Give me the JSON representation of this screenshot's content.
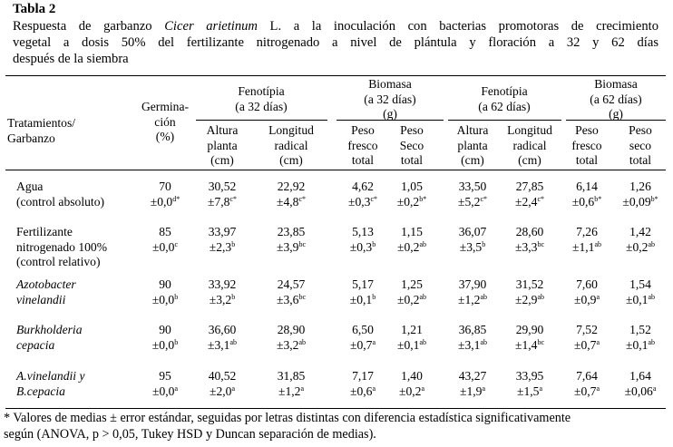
{
  "table_title": "Tabla 2",
  "caption": {
    "part1": "Respuesta de garbanzo ",
    "species": "Cicer arietinum",
    "part2": " L. a la inoculación con bacterias promotoras de crecimiento",
    "line2": "vegetal a dosis 50% del fertilizante nitrogenado a nivel de plántula y floración a 32 y 62 días",
    "line3": "después de la siembra"
  },
  "header": {
    "treatments": [
      "Tratamientos/",
      "Garbanzo"
    ],
    "germination": [
      "Germina-",
      "ción",
      "(%)"
    ],
    "group1": [
      "Fenotípia",
      "(a 32 días)"
    ],
    "group2": [
      "Biomasa",
      "(a 32 días)",
      "(g)"
    ],
    "group3": [
      "Fenotípia",
      "(a 62 días)"
    ],
    "group4": [
      "Biomasa",
      "(a 62 días)",
      "(g)"
    ],
    "subcols": [
      [
        "Altura",
        "planta",
        "(cm)"
      ],
      [
        "Longitud",
        "radical",
        "(cm)"
      ],
      [
        "Peso",
        "fresco",
        "total"
      ],
      [
        "Peso",
        "Seco",
        "total"
      ],
      [
        "Altura",
        "planta",
        "(cm)"
      ],
      [
        "Longitud",
        "radical",
        "(cm)"
      ],
      [
        "Peso",
        "fresco",
        "total"
      ],
      [
        "Peso",
        "seco",
        "total"
      ]
    ]
  },
  "rows": [
    {
      "name": [
        "Agua",
        "(control absoluto)"
      ],
      "italic": false,
      "cells": [
        {
          "mean": "70",
          "err": "±0,0",
          "sup": "d*"
        },
        {
          "mean": "30,52",
          "err": "±7,8",
          "sup": "c*"
        },
        {
          "mean": "22,92",
          "err": "±4,8",
          "sup": "c*"
        },
        {
          "mean": "4,62",
          "err": "±0,3",
          "sup": "c*"
        },
        {
          "mean": "1,05",
          "err": "±0,2",
          "sup": "b*"
        },
        {
          "mean": "33,50",
          "err": "±5,2",
          "sup": "c*"
        },
        {
          "mean": "27,85",
          "err": "±2,4",
          "sup": "c*"
        },
        {
          "mean": "6,14",
          "err": "±0,6",
          "sup": "b*"
        },
        {
          "mean": "1,26",
          "err": "±0,09",
          "sup": "b*"
        }
      ]
    },
    {
      "name": [
        "Fertilizante",
        "nitrogenado 100%",
        "(control relativo)"
      ],
      "italic": false,
      "cells": [
        {
          "mean": "85",
          "err": "±0,0",
          "sup": "c"
        },
        {
          "mean": "33,97",
          "err": "±2,3",
          "sup": "b"
        },
        {
          "mean": "23,85",
          "err": "±3,9",
          "sup": "bc"
        },
        {
          "mean": "5,13",
          "err": "±0,3",
          "sup": "b"
        },
        {
          "mean": "1,15",
          "err": "±0,2",
          "sup": "ab"
        },
        {
          "mean": "36,07",
          "err": "±3,5",
          "sup": "b"
        },
        {
          "mean": "28,60",
          "err": "±3,3",
          "sup": "bc"
        },
        {
          "mean": "7,26",
          "err": "±1,1",
          "sup": "ab"
        },
        {
          "mean": "1,42",
          "err": "±0,2",
          "sup": "ab"
        }
      ]
    },
    {
      "name": [
        "Azotobacter",
        "vinelandii"
      ],
      "italic": true,
      "cells": [
        {
          "mean": "90",
          "err": "±0,0",
          "sup": "b"
        },
        {
          "mean": "33,92",
          "err": "±3,2",
          "sup": "b"
        },
        {
          "mean": "24,57",
          "err": "±3,6",
          "sup": "bc"
        },
        {
          "mean": "5,17",
          "err": "±0,1",
          "sup": "b"
        },
        {
          "mean": "1,25",
          "err": "±0,2",
          "sup": "ab"
        },
        {
          "mean": "37,90",
          "err": "±1,2",
          "sup": "ab"
        },
        {
          "mean": "31,52",
          "err": "±2,9",
          "sup": "ab"
        },
        {
          "mean": "7,60",
          "err": "±0,9",
          "sup": "a"
        },
        {
          "mean": "1,54",
          "err": "±0,1",
          "sup": "ab"
        }
      ]
    },
    {
      "name": [
        "Burkholderia",
        "cepacia"
      ],
      "italic": true,
      "cells": [
        {
          "mean": "90",
          "err": "±0,0",
          "sup": "b"
        },
        {
          "mean": "36,60",
          "err": "±3,1",
          "sup": "ab"
        },
        {
          "mean": "28,90",
          "err": "±3,2",
          "sup": "ab"
        },
        {
          "mean": "6,50",
          "err": "±0,7",
          "sup": "a"
        },
        {
          "mean": "1,21",
          "err": "±0,1",
          "sup": "ab"
        },
        {
          "mean": "36,85",
          "err": "±3,1",
          "sup": "ab"
        },
        {
          "mean": "29,90",
          "err": "±1,4",
          "sup": "bc"
        },
        {
          "mean": "7,52",
          "err": "±0,7",
          "sup": "a"
        },
        {
          "mean": "1,52",
          "err": "±0,1",
          "sup": "ab"
        }
      ]
    },
    {
      "name": [
        "A.vinelandii  y",
        "B.cepacia"
      ],
      "italic": true,
      "cells": [
        {
          "mean": "95",
          "err": "±0,0",
          "sup": "a"
        },
        {
          "mean": "40,52",
          "err": "±2,0",
          "sup": "a"
        },
        {
          "mean": "31,85",
          "err": "±1,2",
          "sup": "a"
        },
        {
          "mean": "7,17",
          "err": "±0,6",
          "sup": "a"
        },
        {
          "mean": "1,40",
          "err": "±0,2",
          "sup": "a"
        },
        {
          "mean": "43,27",
          "err": "±1,9",
          "sup": "a"
        },
        {
          "mean": "33,95",
          "err": "±1,5",
          "sup": "a"
        },
        {
          "mean": "7,64",
          "err": "±0,7",
          "sup": "a"
        },
        {
          "mean": "1,64",
          "err": "±0,06",
          "sup": "a"
        }
      ]
    }
  ],
  "footnote": [
    "* Valores de medias ± error estándar, seguidas por letras distintas con diferencia estadística significativamente",
    "según (ANOVA, p > 0,05, Tukey HSD y Duncan separación de medias)."
  ]
}
